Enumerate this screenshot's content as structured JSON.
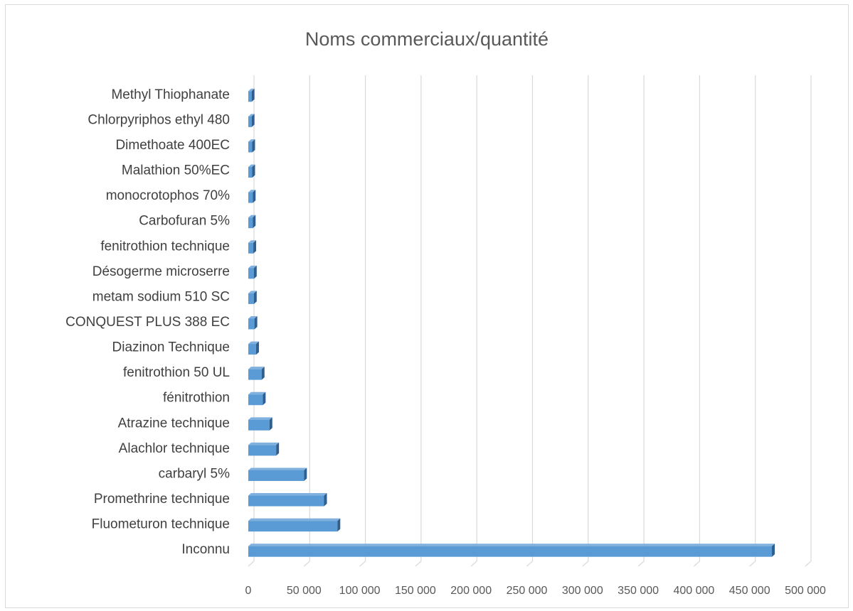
{
  "chart_data": {
    "type": "bar",
    "orientation": "horizontal",
    "title": "Noms commerciaux/quantité",
    "xlabel": "",
    "ylabel": "",
    "xlim": [
      0,
      500000
    ],
    "tick_values": [
      0,
      50000,
      100000,
      150000,
      200000,
      250000,
      300000,
      350000,
      400000,
      450000,
      500000
    ],
    "tick_labels": [
      "0",
      "50 000",
      "100 000",
      "150 000",
      "200 000",
      "250 000",
      "300 000",
      "350 000",
      "400 000",
      "450 000",
      "500 000"
    ],
    "grid": true,
    "legend": "none",
    "bar_color": "#5b9bd5",
    "bar_side_color": "#2e5f8f",
    "categories": [
      "Inconnu",
      "Fluometuron technique",
      "Promethrine technique",
      "carbaryl 5%",
      "Alachlor technique",
      "Atrazine technique",
      "fénitrothion",
      "fenitrothion 50 UL",
      "Diazinon Technique",
      "CONQUEST PLUS 388 EC",
      "metam sodium 510 SC",
      "Désogerme microserre ",
      "fenitrothion technique",
      "Carbofuran 5%",
      "monocrotophos 70%",
      "Malathion 50%EC",
      "Dimethoate 400EC",
      "Chlorpyriphos ethyl 480",
      "Methyl Thiophanate"
    ],
    "values": [
      470000,
      80000,
      68000,
      50000,
      25000,
      19000,
      13000,
      12000,
      7000,
      5500,
      5000,
      5000,
      4500,
      4000,
      4000,
      3500,
      3500,
      3000,
      3000
    ]
  }
}
